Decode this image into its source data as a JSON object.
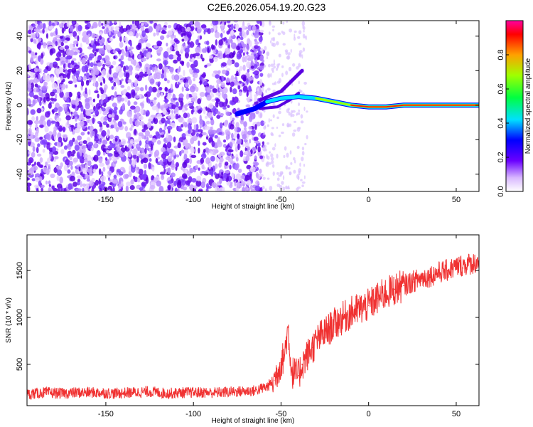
{
  "title": "C2E6.2026.054.19.20.G23",
  "chart_data": [
    {
      "type": "heatmap",
      "xlabel": "Height of straight line (km)",
      "ylabel": "Frequency (Hz)",
      "xlim": [
        -195,
        63
      ],
      "ylim": [
        -50,
        49
      ],
      "xticks": [
        -150,
        -100,
        -50,
        0,
        50
      ],
      "yticks": [
        -40,
        -20,
        0,
        20,
        40
      ],
      "colorbar": {
        "label": "Normalized spectral amplitude",
        "range": [
          0,
          1
        ],
        "ticks": [
          0.0,
          0.2,
          0.4,
          0.6,
          0.8
        ]
      },
      "ridge": [
        {
          "x": -75,
          "y": -5
        },
        {
          "x": -65,
          "y": -2
        },
        {
          "x": -58,
          "y": 2
        },
        {
          "x": -50,
          "y": 4
        },
        {
          "x": -40,
          "y": 5
        },
        {
          "x": -30,
          "y": 4
        },
        {
          "x": -20,
          "y": 2
        },
        {
          "x": -10,
          "y": 0
        },
        {
          "x": 0,
          "y": -1
        },
        {
          "x": 10,
          "y": -1
        },
        {
          "x": 20,
          "y": 0
        },
        {
          "x": 63,
          "y": 0
        }
      ],
      "branch": [
        {
          "x": -62,
          "y": 3
        },
        {
          "x": -50,
          "y": 8
        },
        {
          "x": -42,
          "y": 16
        },
        {
          "x": -38,
          "y": 20
        }
      ],
      "branch2": [
        {
          "x": -62,
          "y": -2
        },
        {
          "x": -52,
          "y": -1
        },
        {
          "x": -45,
          "y": 3
        },
        {
          "x": -40,
          "y": 7
        }
      ]
    },
    {
      "type": "line",
      "xlabel": "Height of straight line (km)",
      "ylabel": "SNR (10 * v/v)",
      "xlim": [
        -195,
        63
      ],
      "ylim": [
        60,
        1880
      ],
      "xticks": [
        -150,
        -100,
        -50,
        0,
        50
      ],
      "yticks": [
        500,
        1000,
        1500
      ],
      "series": [
        {
          "color": "#f03232",
          "x": [
            -195,
            -185,
            -175,
            -165,
            -155,
            -145,
            -135,
            -125,
            -115,
            -105,
            -95,
            -85,
            -75,
            -65,
            -58,
            -54,
            -50,
            -48,
            -46,
            -44,
            -42,
            -40,
            -38,
            -35,
            -32,
            -28,
            -24,
            -20,
            -15,
            -10,
            -5,
            0,
            5,
            10,
            15,
            20,
            25,
            30,
            35,
            40,
            45,
            50,
            55,
            60,
            63
          ],
          "values": [
            180,
            200,
            190,
            200,
            200,
            190,
            200,
            210,
            190,
            200,
            200,
            200,
            210,
            220,
            260,
            330,
            520,
            600,
            900,
            420,
            400,
            380,
            500,
            600,
            680,
            790,
            850,
            920,
            990,
            1050,
            1090,
            1130,
            1200,
            1260,
            1300,
            1340,
            1380,
            1420,
            1440,
            1480,
            1500,
            1540,
            1560,
            1580,
            1600
          ]
        }
      ]
    }
  ]
}
